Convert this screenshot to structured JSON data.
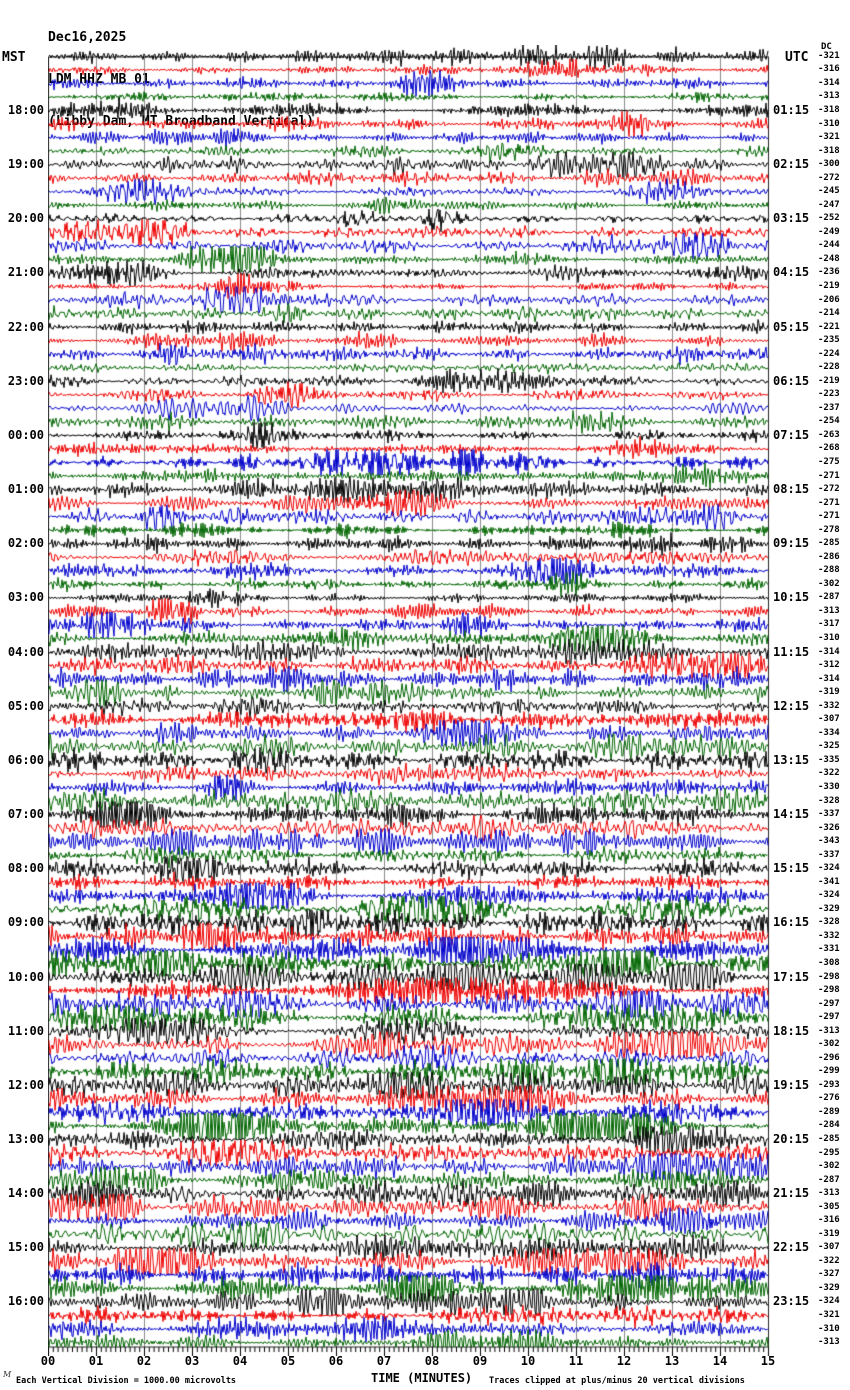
{
  "header": {
    "date": "Dec16,2025",
    "station": "LDM HHZ MB 01",
    "description": "(Libby Dam, MT Broadband Vertical)"
  },
  "axes": {
    "left_tz": "MST",
    "right_tz": "UTC",
    "dc_header": "DC",
    "x_title": "TIME (MINUTES)"
  },
  "footer": {
    "left": "Each Vertical Division = 1000.00 microvolts",
    "right": "Traces clipped at plus/minus 20 vertical divisions",
    "watermark": "M"
  },
  "chart_data": {
    "type": "line",
    "kind": "seismogram-helicorder",
    "x_axis": {
      "title": "TIME (MINUTES)",
      "range_minutes": [
        0,
        15
      ],
      "tick_labels": [
        "00",
        "01",
        "02",
        "03",
        "04",
        "05",
        "06",
        "07",
        "08",
        "09",
        "10",
        "11",
        "12",
        "13",
        "14",
        "15"
      ],
      "minor_tick_per_minute": 10
    },
    "rows_total": 96,
    "rows_per_hour": 4,
    "minutes_per_row": 15,
    "trace_colors": [
      "#000000",
      "#ee0000",
      "#0000cc",
      "#006600"
    ],
    "grid_color": "#8a8a8a",
    "mst_labels": [
      "18:00",
      "19:00",
      "20:00",
      "21:00",
      "22:00",
      "23:00",
      "00:00",
      "01:00",
      "02:00",
      "03:00",
      "04:00",
      "05:00",
      "06:00",
      "07:00",
      "08:00",
      "09:00",
      "10:00",
      "11:00",
      "12:00",
      "13:00",
      "14:00",
      "15:00",
      "16:00"
    ],
    "utc_labels": [
      "01:15",
      "02:15",
      "03:15",
      "04:15",
      "05:15",
      "06:15",
      "07:15",
      "08:15",
      "09:15",
      "10:15",
      "11:15",
      "12:15",
      "13:15",
      "14:15",
      "15:15",
      "16:15",
      "17:15",
      "18:15",
      "19:15",
      "20:15",
      "21:15",
      "22:15",
      "23:15"
    ],
    "labels_at_row_interval": 4,
    "first_label_row": 4,
    "dc_values": [
      -321,
      -316,
      -314,
      -313,
      -318,
      -310,
      -321,
      -318,
      -300,
      -272,
      -245,
      -247,
      -252,
      -249,
      -244,
      -248,
      -236,
      -219,
      -206,
      -214,
      -221,
      -235,
      -224,
      -228,
      -219,
      -223,
      -237,
      -254,
      -263,
      -268,
      -275,
      -271,
      -272,
      -271,
      -271,
      -278,
      -285,
      -286,
      -288,
      -302,
      -287,
      -313,
      -317,
      -310,
      -314,
      -312,
      -314,
      -319,
      -332,
      -307,
      -334,
      -325,
      -335,
      -322,
      -330,
      -328,
      -337,
      -326,
      -343,
      -337,
      -324,
      -341,
      -324,
      -329,
      -328,
      -332,
      -331,
      -308,
      -298,
      -298,
      -297,
      -297,
      -313,
      -302,
      -296,
      -299,
      -293,
      -276,
      -289,
      -284,
      -285,
      -295,
      -302,
      -287,
      -313,
      -305,
      -316,
      -319,
      -307,
      -322,
      -327,
      -329,
      -324,
      -321,
      -310,
      -313
    ],
    "clip_divisions": 20,
    "microvolts_per_division": 1000.0
  }
}
